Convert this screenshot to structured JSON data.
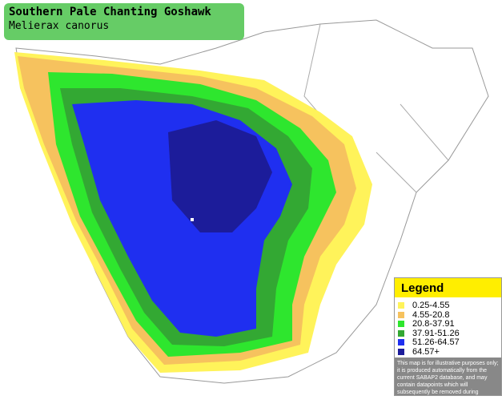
{
  "title": "Southern Pale Chanting Goshawk",
  "species": "Melierax canorus",
  "legend": {
    "title": "Legend",
    "items": [
      {
        "label": "0.25-4.55",
        "color": "#fff35a"
      },
      {
        "label": "4.55-20.8",
        "color": "#f6c25e"
      },
      {
        "label": "20.8-37.91",
        "color": "#2ee62e"
      },
      {
        "label": "37.91-51.26",
        "color": "#33a833"
      },
      {
        "label": "51.26-64.57",
        "color": "#1f2ff0"
      },
      {
        "label": "64.57+",
        "color": "#1c1c9a"
      }
    ]
  },
  "disclaimer": "This map is for illustrative purposes only; it is produced automatically from the current SABAP2 database, and may contain datapoints which will subsequently be removed during checking operations."
}
